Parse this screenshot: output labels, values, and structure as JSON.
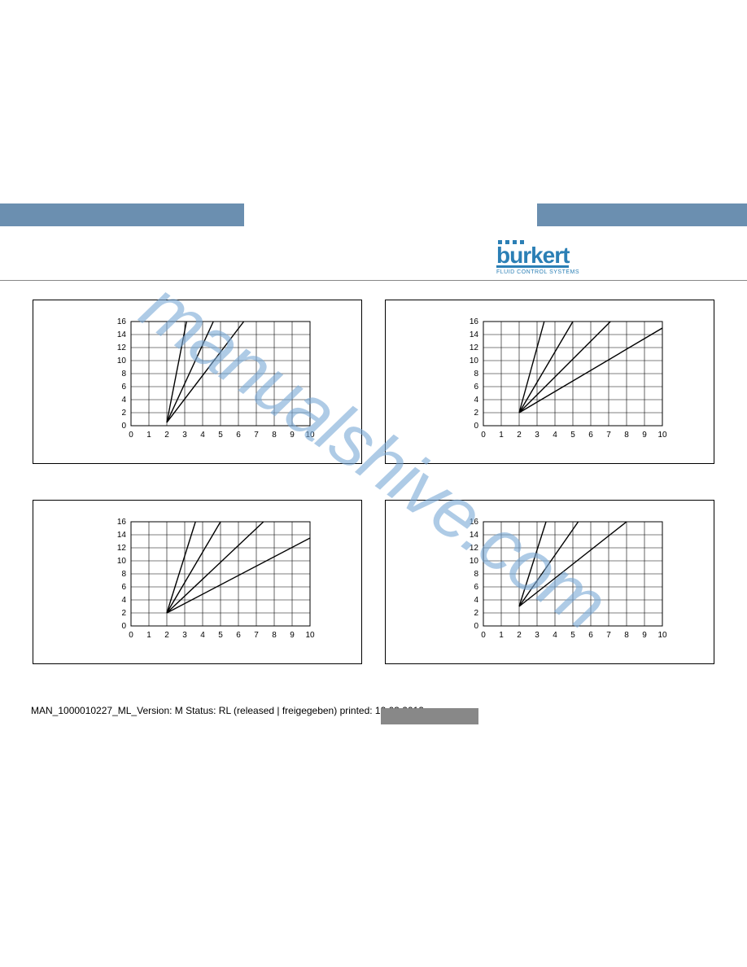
{
  "header": {
    "bar_color": "#6b8fb0",
    "logo_brand": "burkert",
    "logo_tagline": "FLUID CONTROL SYSTEMS",
    "logo_color": "#2b7fb5"
  },
  "watermark": {
    "text": "manualshive.com",
    "color": "#7aa9d6"
  },
  "chart_common": {
    "x_ticks": [
      0,
      1,
      2,
      3,
      4,
      5,
      6,
      7,
      8,
      9,
      10
    ],
    "y_ticks": [
      0,
      2,
      4,
      6,
      8,
      10,
      12,
      14,
      16
    ],
    "xlim": [
      0,
      10
    ],
    "ylim": [
      0,
      16
    ],
    "grid_color": "#000000",
    "line_color": "#000000",
    "line_width": 1.4,
    "tick_fontsize": 10,
    "background": "transparent",
    "border_color": "#000000"
  },
  "charts": [
    {
      "id": "chart-tl",
      "type": "line",
      "series": [
        {
          "points": [
            [
              2,
              0.5
            ],
            [
              3.1,
              16
            ]
          ]
        },
        {
          "points": [
            [
              2,
              0.5
            ],
            [
              4.6,
              16
            ]
          ]
        },
        {
          "points": [
            [
              2,
              0.5
            ],
            [
              6.3,
              16
            ]
          ]
        }
      ]
    },
    {
      "id": "chart-tr",
      "type": "line",
      "series": [
        {
          "points": [
            [
              2,
              2
            ],
            [
              3.4,
              16
            ]
          ]
        },
        {
          "points": [
            [
              2,
              2
            ],
            [
              5.0,
              16
            ]
          ]
        },
        {
          "points": [
            [
              2,
              2
            ],
            [
              7.1,
              16
            ]
          ]
        },
        {
          "points": [
            [
              2,
              2
            ],
            [
              10,
              15
            ]
          ]
        }
      ]
    },
    {
      "id": "chart-bl",
      "type": "line",
      "series": [
        {
          "points": [
            [
              2,
              2
            ],
            [
              3.6,
              16
            ]
          ]
        },
        {
          "points": [
            [
              2,
              2
            ],
            [
              5.0,
              16
            ]
          ]
        },
        {
          "points": [
            [
              2,
              2
            ],
            [
              7.4,
              16
            ]
          ]
        },
        {
          "points": [
            [
              2,
              2
            ],
            [
              10,
              13.5
            ]
          ]
        }
      ]
    },
    {
      "id": "chart-br",
      "type": "line",
      "series": [
        {
          "points": [
            [
              2,
              3
            ],
            [
              3.5,
              16
            ]
          ]
        },
        {
          "points": [
            [
              2,
              3
            ],
            [
              5.3,
              16
            ]
          ]
        },
        {
          "points": [
            [
              2,
              3
            ],
            [
              8.0,
              16
            ]
          ]
        }
      ]
    }
  ],
  "footer": {
    "text": "MAN_1000010227_ML_Version: M Status: RL (released | freigegeben)  printed: 12.03.2012",
    "bar_color": "#888888"
  }
}
